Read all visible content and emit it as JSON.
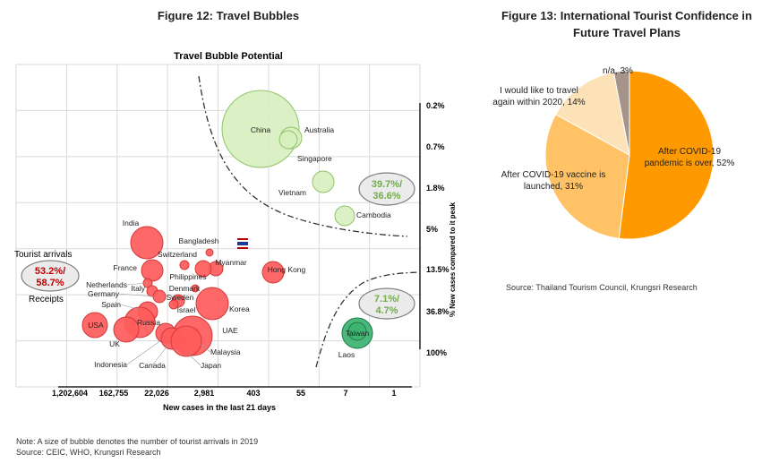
{
  "fig12": {
    "title": "Figure 12: Travel Bubbles",
    "note": "Note: A size of bubble denotes the number of tourist arrivals in 2019",
    "source": "Source: CEIC, WHO, Krungsri Research"
  },
  "fig13": {
    "title_line1": "Figure 13: International Tourist Confidence in",
    "title_line2": "Future Travel Plans",
    "source": "Source: Thailand Tourism Council, Krungsri Research"
  },
  "chart_data": [
    {
      "type": "scatter",
      "title": "Travel Bubble Potential",
      "xlabel": "New cases in the last 21 days",
      "ylabel": "% New cases compared to it peak",
      "x_ticks": [
        "1,202,604",
        "162,755",
        "22,026",
        "2,981",
        "403",
        "55",
        "7",
        "1"
      ],
      "y_ticks": [
        "0.2%",
        "0.7%",
        "1.8%",
        "5%",
        "13.5%",
        "36.8%",
        "100%"
      ],
      "x_scale": "log (reversed)",
      "y_scale": "log",
      "grid": true,
      "colors": {
        "green": "#a9d18e",
        "red": "#ff5b5b",
        "teal": "#3cb371",
        "line": "#333333"
      },
      "points": [
        {
          "label": "China",
          "x": 700,
          "y": 0.005,
          "size": 10,
          "color": "green"
        },
        {
          "label": "Australia",
          "x": 35,
          "y": 0.006,
          "size": 1.5,
          "color": "green"
        },
        {
          "label": "Singapore",
          "x": 30,
          "y": 0.006,
          "size": 1.2,
          "color": "green"
        },
        {
          "label": "Vietnam",
          "x": 10,
          "y": 0.016,
          "size": 1.3,
          "color": "green"
        },
        {
          "label": "Cambodia",
          "x": 3,
          "y": 0.04,
          "size": 1.1,
          "color": "green"
        },
        {
          "label": "India",
          "x": 80000,
          "y": 0.1,
          "size": 3,
          "color": "red"
        },
        {
          "label": "Bangladesh",
          "x": 1800,
          "y": 0.13,
          "size": 0.5,
          "color": "red"
        },
        {
          "label": "Switzerland",
          "x": 5500,
          "y": 0.17,
          "size": 0.6,
          "color": "red"
        },
        {
          "label": "Myanmar",
          "x": 1600,
          "y": 0.17,
          "size": 0.8,
          "color": "red"
        },
        {
          "label": "France",
          "x": 20000,
          "y": 0.18,
          "size": 1.8,
          "color": "red"
        },
        {
          "label": "Philippines",
          "x": 2500,
          "y": 0.17,
          "size": 1.4,
          "color": "red"
        },
        {
          "label": "Hong Kong",
          "x": 150,
          "y": 0.18,
          "size": 1.6,
          "color": "red"
        },
        {
          "label": "Denmark",
          "x": 3000,
          "y": 0.3,
          "size": 0.5,
          "color": "red"
        },
        {
          "label": "Netherlands",
          "x": 20000,
          "y": 0.32,
          "size": 0.7,
          "color": "red"
        },
        {
          "label": "Italy",
          "x": 18000,
          "y": 0.3,
          "size": 0.6,
          "color": "red"
        },
        {
          "label": "Germany",
          "x": 25000,
          "y": 0.35,
          "size": 0.8,
          "color": "red"
        },
        {
          "label": "Sweden",
          "x": 7000,
          "y": 0.37,
          "size": 0.7,
          "color": "red"
        },
        {
          "label": "Korea",
          "x": 1800,
          "y": 0.4,
          "size": 3,
          "color": "red"
        },
        {
          "label": "Israel",
          "x": 5500,
          "y": 0.4,
          "size": 0.6,
          "color": "red"
        },
        {
          "label": "Spain",
          "x": 25000,
          "y": 0.5,
          "size": 1.5,
          "color": "red"
        },
        {
          "label": "Russia",
          "x": 30000,
          "y": 0.55,
          "size": 2.5,
          "color": "red"
        },
        {
          "label": "USA",
          "x": 900000,
          "y": 0.6,
          "size": 2.2,
          "color": "red"
        },
        {
          "label": "UAE",
          "x": 4500,
          "y": 0.6,
          "size": 0.6,
          "color": "red"
        },
        {
          "label": "UK",
          "x": 100000,
          "y": 0.62,
          "size": 2.2,
          "color": "red"
        },
        {
          "label": "Malaysia",
          "x": 3300,
          "y": 0.65,
          "size": 3.5,
          "color": "red"
        },
        {
          "label": "Indonesia",
          "x": 9000,
          "y": 0.63,
          "size": 1.5,
          "color": "red"
        },
        {
          "label": "Canada",
          "x": 6500,
          "y": 0.63,
          "size": 1.5,
          "color": "red"
        },
        {
          "label": "Japan",
          "x": 3500,
          "y": 0.66,
          "size": 2.7,
          "color": "red"
        },
        {
          "label": "Taiwan",
          "x": 7,
          "y": 0.62,
          "size": 1.9,
          "color": "teal"
        },
        {
          "label": "Laos",
          "x": 7,
          "y": 0.62,
          "size": 1.0,
          "color": "teal"
        }
      ],
      "annotations": [
        {
          "text": "39.7%/",
          "text2": "36.6%",
          "color": "#70ad47"
        },
        {
          "text": "7.1%/",
          "text2": "4.7%",
          "color": "#70ad47"
        },
        {
          "text": "53.2%/",
          "text2": "58.7%",
          "color": "#c00000"
        },
        {
          "text": "Tourist arrivals"
        },
        {
          "text": "Receipts"
        }
      ]
    },
    {
      "type": "pie",
      "slices": [
        {
          "label": "After COVID-19 pandemic is over, 52%",
          "value": 52,
          "color": "#ff9900"
        },
        {
          "label": "After COVID-19 vaccine is launched, 31%",
          "value": 31,
          "color": "#ffc266"
        },
        {
          "label": "I would like to travel again within 2020, 14%",
          "value": 14,
          "color": "#fde2b8"
        },
        {
          "label": "n/a, 3%",
          "value": 3,
          "color": "#a6948b"
        }
      ]
    }
  ]
}
